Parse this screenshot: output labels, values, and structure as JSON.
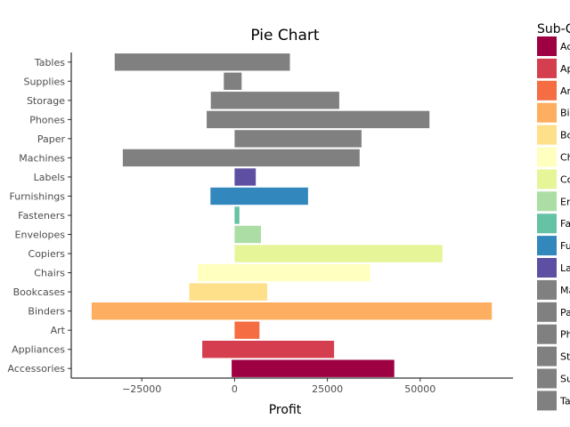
{
  "chart_data": {
    "type": "bar",
    "orientation": "horizontal",
    "title": "Pie Chart",
    "xlabel": "Profit",
    "ylabel": "",
    "xlim": [
      -44000,
      75000
    ],
    "x_ticks": [
      -25000,
      0,
      25000,
      50000
    ],
    "x_tick_labels": [
      "−25000",
      "0",
      "25000",
      "50000"
    ],
    "grid": false,
    "legend_title": "Sub-Category",
    "legend_position": "right",
    "categories": [
      "Accessories",
      "Appliances",
      "Art",
      "Binders",
      "Bookcases",
      "Chairs",
      "Copiers",
      "Envelopes",
      "Fasteners",
      "Furnishings",
      "Labels",
      "Machines",
      "Paper",
      "Phones",
      "Storage",
      "Supplies",
      "Tables"
    ],
    "bars": [
      {
        "category": "Accessories",
        "start": -800,
        "end": 43000,
        "color": "#9e0142"
      },
      {
        "category": "Appliances",
        "start": -8700,
        "end": 26800,
        "color": "#d53e4f"
      },
      {
        "category": "Art",
        "start": 0,
        "end": 6700,
        "color": "#f46d43"
      },
      {
        "category": "Binders",
        "start": -38500,
        "end": 69300,
        "color": "#fdae61"
      },
      {
        "category": "Bookcases",
        "start": -12200,
        "end": 8800,
        "color": "#fee08b"
      },
      {
        "category": "Chairs",
        "start": -9900,
        "end": 36500,
        "color": "#ffffbf"
      },
      {
        "category": "Copiers",
        "start": 0,
        "end": 56000,
        "color": "#e6f598"
      },
      {
        "category": "Envelopes",
        "start": 0,
        "end": 7100,
        "color": "#abdda4"
      },
      {
        "category": "Fasteners",
        "start": 0,
        "end": 1300,
        "color": "#66c2a5"
      },
      {
        "category": "Furnishings",
        "start": -6500,
        "end": 19800,
        "color": "#3288bd"
      },
      {
        "category": "Labels",
        "start": 0,
        "end": 5700,
        "color": "#5e4fa2"
      },
      {
        "category": "Machines",
        "start": -30100,
        "end": 33700,
        "color": "#808080"
      },
      {
        "category": "Paper",
        "start": 0,
        "end": 34200,
        "color": "#808080"
      },
      {
        "category": "Phones",
        "start": -7500,
        "end": 52500,
        "color": "#808080"
      },
      {
        "category": "Storage",
        "start": -6400,
        "end": 28200,
        "color": "#808080"
      },
      {
        "category": "Supplies",
        "start": -2900,
        "end": 1900,
        "color": "#808080"
      },
      {
        "category": "Tables",
        "start": -32300,
        "end": 14900,
        "color": "#808080"
      }
    ],
    "legend": [
      {
        "label": "Accessories",
        "color": "#9e0142"
      },
      {
        "label": "Appliances",
        "color": "#d53e4f"
      },
      {
        "label": "Art",
        "color": "#f46d43"
      },
      {
        "label": "Binders",
        "color": "#fdae61"
      },
      {
        "label": "Bookcases",
        "color": "#fee08b"
      },
      {
        "label": "Chairs",
        "color": "#ffffbf"
      },
      {
        "label": "Copiers",
        "color": "#e6f598"
      },
      {
        "label": "Envelopes",
        "color": "#abdda4"
      },
      {
        "label": "Fasteners",
        "color": "#66c2a5"
      },
      {
        "label": "Furnishings",
        "color": "#3288bd"
      },
      {
        "label": "Labels",
        "color": "#5e4fa2"
      },
      {
        "label": "Machines",
        "color": "#808080"
      },
      {
        "label": "Paper",
        "color": "#808080"
      },
      {
        "label": "Phones",
        "color": "#808080"
      },
      {
        "label": "Storage",
        "color": "#808080"
      },
      {
        "label": "Supplies",
        "color": "#808080"
      },
      {
        "label": "Tables",
        "color": "#808080"
      }
    ]
  }
}
